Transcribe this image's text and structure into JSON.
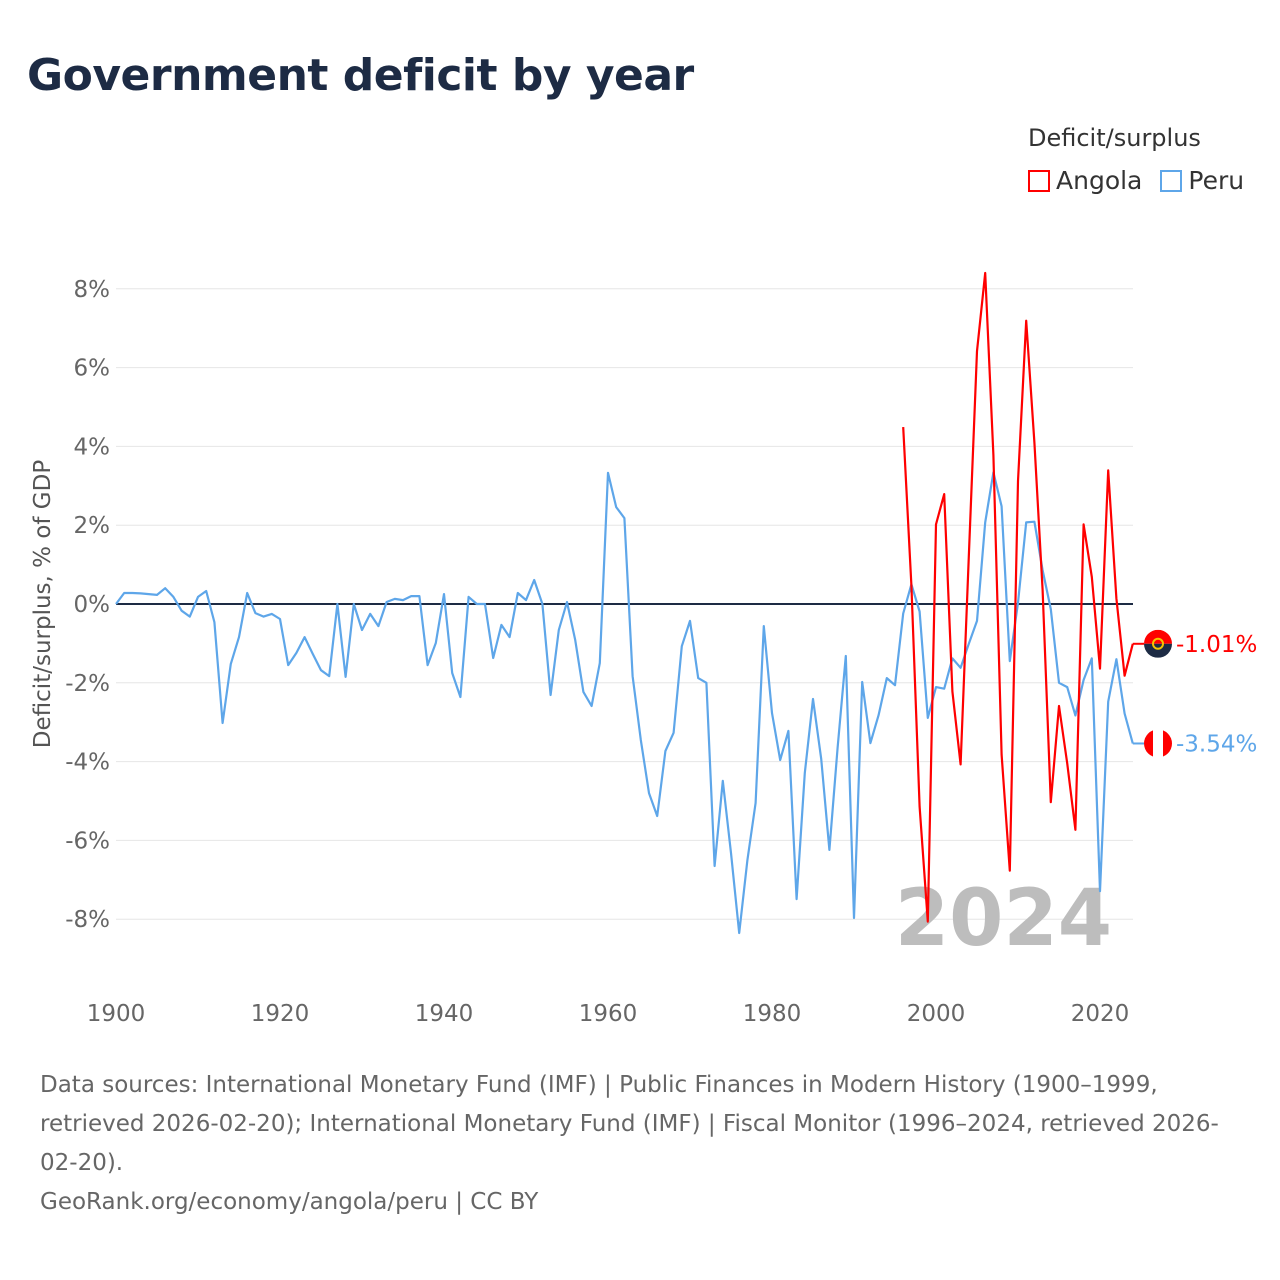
{
  "title": "Government deficit by year",
  "legend": {
    "title": "Deficit/surplus",
    "items": [
      {
        "name": "Angola",
        "color": "#ff0000"
      },
      {
        "name": "Peru",
        "color": "#5ea6e9"
      }
    ]
  },
  "year_watermark": "2024",
  "footer": {
    "sources": "Data sources: International Monetary Fund (IMF) | Public Finances in Modern History (1900–1999, retrieved 2026-02-20); International Monetary Fund (IMF) | Fiscal Monitor (1996–2024, retrieved 2026-02-20).",
    "credit": "GeoRank.org/economy/angola/peru | CC BY"
  },
  "chart_data": {
    "type": "line",
    "title": "Government deficit by year",
    "xlabel": "",
    "ylabel": "Deficit/surplus, % of GDP",
    "xlim": [
      1900,
      2024
    ],
    "ylim": [
      -9,
      9
    ],
    "x_ticks": [
      "1900",
      "1920",
      "1940",
      "1960",
      "1980",
      "2000",
      "2020"
    ],
    "y_ticks": [
      {
        "value": 8,
        "label": "8%"
      },
      {
        "value": 6,
        "label": "6%"
      },
      {
        "value": 4,
        "label": "4%"
      },
      {
        "value": 2,
        "label": "2%"
      },
      {
        "value": 0,
        "label": "0%"
      },
      {
        "value": -2,
        "label": "-2%"
      },
      {
        "value": -4,
        "label": "-4%"
      },
      {
        "value": -6,
        "label": "-6%"
      },
      {
        "value": -8,
        "label": "-8%"
      }
    ],
    "grid": true,
    "legend_position": "top-right",
    "series": [
      {
        "name": "Angola",
        "color": "#ff0000",
        "end_label": "-1.01%",
        "start_year": 1996,
        "values": [
          4.49,
          0.47,
          -5.14,
          -8.06,
          2.02,
          2.79,
          -2.22,
          -4.07,
          1.2,
          6.42,
          8.4,
          3.78,
          -3.82,
          -6.77,
          3.12,
          7.19,
          4.1,
          0.36,
          -5.03,
          -2.59,
          -4.04,
          -5.73,
          2.02,
          0.69,
          -1.64,
          3.39,
          0.14,
          -1.82,
          -1.01
        ]
      },
      {
        "name": "Peru",
        "color": "#5ea6e9",
        "end_label": "-3.54%",
        "start_year": 1900,
        "values": [
          0,
          0.28,
          0.28,
          0.27,
          0.25,
          0.23,
          0.4,
          0.18,
          -0.17,
          -0.32,
          0.18,
          0.33,
          -0.46,
          -3.02,
          -1.52,
          -0.84,
          0.28,
          -0.23,
          -0.32,
          -0.25,
          -0.38,
          -1.55,
          -1.24,
          -0.84,
          -1.27,
          -1.68,
          -1.83,
          0,
          -1.85,
          0,
          -0.66,
          -0.25,
          -0.56,
          0.05,
          0.13,
          0.1,
          0.2,
          0.2,
          -1.55,
          -0.99,
          0.25,
          -1.75,
          -2.36,
          0.18,
          0,
          0,
          -1.37,
          -0.53,
          -0.84,
          0.28,
          0.1,
          0.61,
          0,
          -2.31,
          -0.66,
          0.05,
          -0.91,
          -2.23,
          -2.59,
          -1.5,
          3.33,
          2.46,
          2.18,
          -1.83,
          -3.45,
          -4.8,
          -5.38,
          -3.73,
          -3.27,
          -1.07,
          -0.43,
          -1.88,
          -2.0,
          -6.65,
          -4.49,
          -6.32,
          -8.35,
          -6.5,
          -5.05,
          -0.56,
          -2.77,
          -3.96,
          -3.22,
          -7.49,
          -4.29,
          -2.41,
          -3.93,
          -6.24,
          -3.65,
          -1.32,
          -7.97,
          -1.98,
          -3.53,
          -2.82,
          -1.88,
          -2.06,
          -0.24,
          0.5,
          -0.19,
          -2.89,
          -2.11,
          -2.15,
          -1.38,
          -1.62,
          -1.01,
          -0.43,
          2.07,
          3.34,
          2.48,
          -1.45,
          0.03,
          2.07,
          2.09,
          0.86,
          -0.13,
          -2.0,
          -2.11,
          -2.83,
          -1.93,
          -1.38,
          -7.29,
          -2.48,
          -1.4,
          -2.78,
          -3.54
        ]
      }
    ]
  }
}
